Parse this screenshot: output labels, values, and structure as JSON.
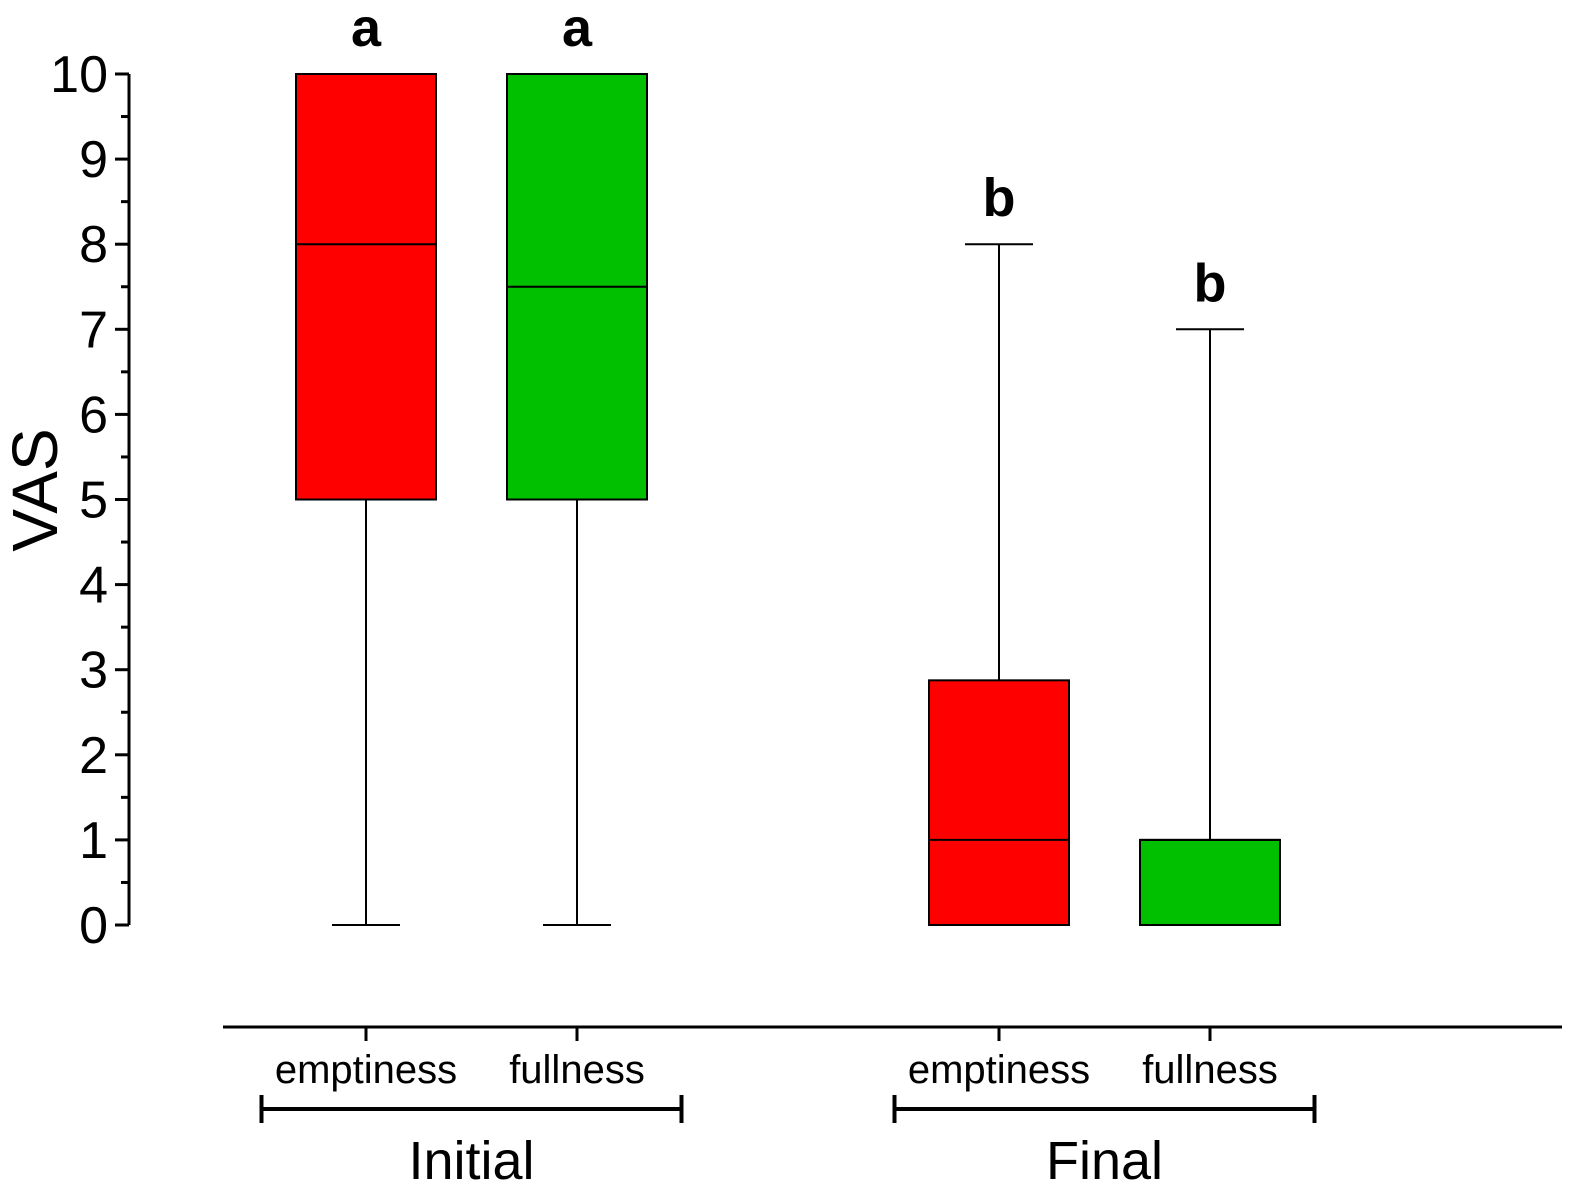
{
  "chart_data": {
    "type": "box",
    "ylabel": "VAS",
    "xlabel": "",
    "ylim": [
      0,
      10
    ],
    "yticks": [
      "0",
      "1",
      "2",
      "3",
      "4",
      "5",
      "6",
      "7",
      "8",
      "9",
      "10"
    ],
    "colors": {
      "emptiness": "#ff0000",
      "fullness": "#00c000",
      "line": "#000000"
    },
    "groups": [
      {
        "label": "Initial",
        "members": [
          0,
          1
        ]
      },
      {
        "label": "Final",
        "members": [
          2,
          3
        ]
      }
    ],
    "boxes": [
      {
        "group": "Initial",
        "category": "emptiness",
        "min": 0,
        "q1": 5,
        "median": 8,
        "q3": 10,
        "max": 10,
        "sig": "a"
      },
      {
        "group": "Initial",
        "category": "fullness",
        "min": 0,
        "q1": 5,
        "median": 7.5,
        "q3": 10,
        "max": 10,
        "sig": "a"
      },
      {
        "group": "Final",
        "category": "emptiness",
        "min": 0,
        "q1": 0,
        "median": 1,
        "q3": 2.875,
        "max": 8,
        "sig": "b"
      },
      {
        "group": "Final",
        "category": "fullness",
        "min": 0,
        "q1": 0,
        "median": 1,
        "q3": 1,
        "max": 7,
        "sig": "b"
      }
    ]
  }
}
